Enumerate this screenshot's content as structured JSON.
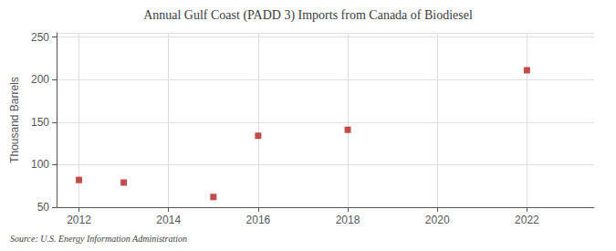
{
  "chart_data": {
    "type": "scatter",
    "title": "Annual Gulf Coast (PADD 3) Imports from Canada of Biodiesel",
    "ylabel": "Thousand Barrels",
    "annotations": [
      "Source: U.S. Energy Information Administration"
    ],
    "x": [
      2012,
      2013,
      2015,
      2016,
      2018,
      2022
    ],
    "values": [
      82,
      79,
      62,
      134,
      141,
      211
    ],
    "xlim": [
      2011.5,
      2023.5
    ],
    "ylim": [
      50,
      255
    ],
    "xticks": [
      2012,
      2014,
      2016,
      2018,
      2020,
      2022
    ],
    "yticks": [
      50,
      100,
      150,
      200,
      250
    ],
    "color": "#b22020",
    "marker": "square",
    "grid": true
  }
}
